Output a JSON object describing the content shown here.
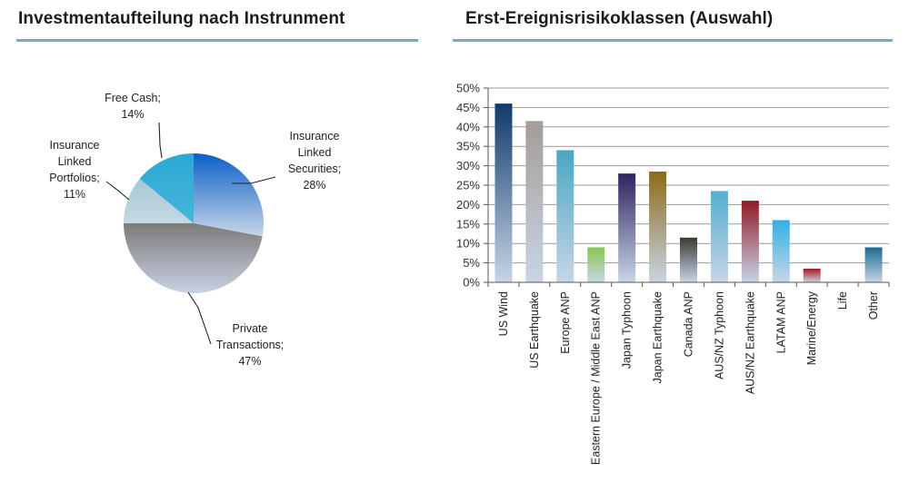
{
  "chart_data": [
    {
      "type": "pie",
      "title": "Investmentaufteilung nach Instrunment",
      "slices": [
        {
          "label": [
            "Insurance",
            "Linked",
            "Securities;"
          ],
          "pct_label": "28%",
          "value": 28,
          "color_top": "#0b5fc7",
          "color_bottom": "#c9d6e8"
        },
        {
          "label": [
            "Private",
            "Transactions;"
          ],
          "pct_label": "47%",
          "value": 47,
          "color_top": "#7e7a78",
          "color_bottom": "#c8d2e4"
        },
        {
          "label": [
            "Insurance",
            "Linked",
            "Portfolios;"
          ],
          "pct_label": "11%",
          "value": 11,
          "color_top": "#a7c8d6",
          "color_bottom": "#c5d8e2"
        },
        {
          "label": [
            "Free Cash;"
          ],
          "pct_label": "14%",
          "value": 14,
          "color_top": "#28a9d5",
          "color_bottom": "#4bb4da"
        }
      ]
    },
    {
      "type": "bar",
      "title": "Erst-Ereignisrisikoklassen (Auswahl)",
      "ylim": [
        0,
        50
      ],
      "yticks": [
        "0%",
        "5%",
        "10%",
        "15%",
        "20%",
        "25%",
        "30%",
        "35%",
        "40%",
        "45%",
        "50%"
      ],
      "categories": [
        "US Wind",
        "US Earthquake",
        "Europe ANP",
        "Eastern Europe / Middle East ANP",
        "Japan Typhoon",
        "Japan Earthquake",
        "Canada ANP",
        "AUS/NZ Typhoon",
        "AUS/NZ Earthquake",
        "LATAM ANP",
        "Marine/Energy",
        "Life",
        "Other"
      ],
      "values": [
        46,
        41.5,
        34,
        9,
        28,
        28.5,
        11.5,
        23.5,
        21,
        16,
        3.5,
        0,
        9
      ],
      "colors": [
        "#0f3a6a",
        "#a49c97",
        "#4aa7c4",
        "#86c750",
        "#2e2460",
        "#8d6a1a",
        "#3c3a34",
        "#56add0",
        "#8e1a26",
        "#33b0e6",
        "#a8141f",
        "#cccccc",
        "#1f6a8d"
      ]
    }
  ]
}
